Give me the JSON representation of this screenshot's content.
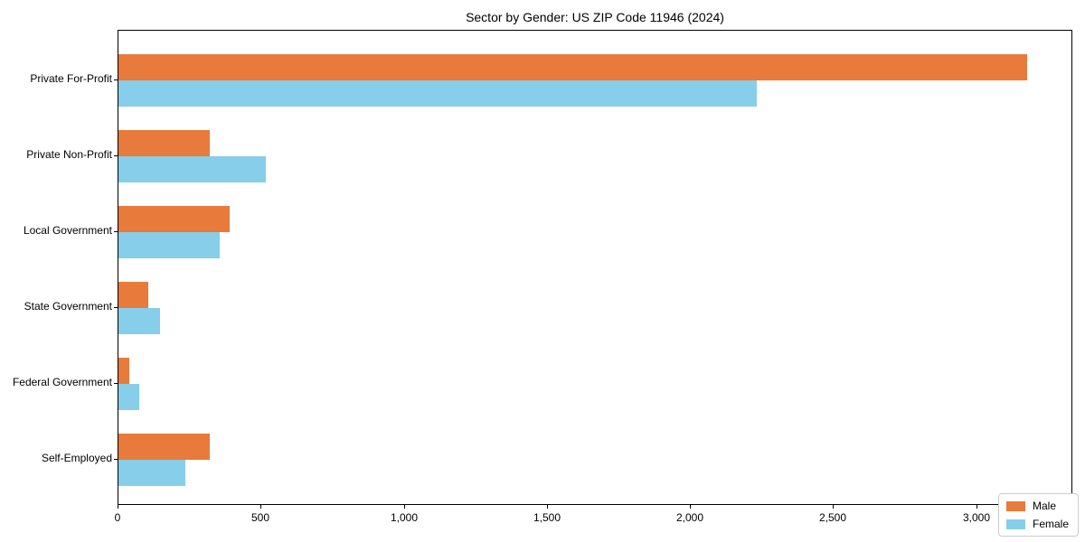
{
  "chart_data": {
    "type": "bar",
    "orientation": "horizontal",
    "title": "Sector by Gender: US ZIP Code 11946 (2024)",
    "categories": [
      "Private For-Profit",
      "Private Non-Profit",
      "Local Government",
      "State Government",
      "Federal Government",
      "Self-Employed"
    ],
    "series": [
      {
        "name": "Male",
        "color": "#e87a3c",
        "values": [
          3175,
          320,
          390,
          105,
          38,
          320
        ]
      },
      {
        "name": "Female",
        "color": "#87ceeb",
        "values": [
          2230,
          515,
          355,
          145,
          73,
          235
        ]
      }
    ],
    "xlabel": "",
    "ylabel": "",
    "xlim": [
      0,
      3330
    ],
    "xticks": [
      0,
      500,
      1000,
      1500,
      2000,
      2500,
      3000
    ],
    "xtick_labels": [
      "0",
      "500",
      "1,000",
      "1,500",
      "2,000",
      "2,500",
      "3,000"
    ],
    "grid": false,
    "legend": {
      "position": "lower right",
      "items": [
        "Male",
        "Female"
      ]
    },
    "axis_color": "#000000",
    "background_color": "#ffffff"
  }
}
